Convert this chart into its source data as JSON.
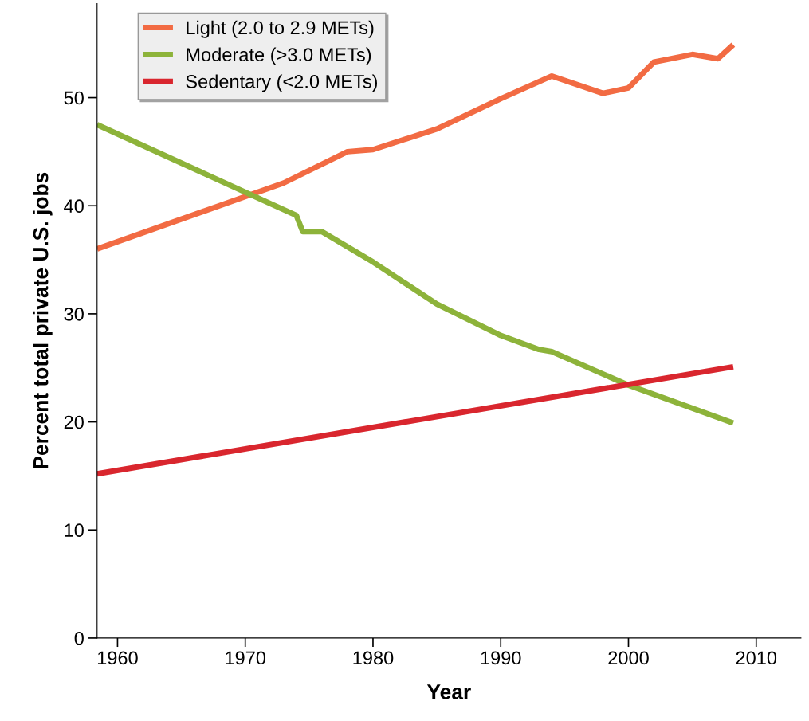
{
  "chart_data": {
    "type": "line",
    "xlabel": "Year",
    "ylabel": "Percent total private U.S. jobs",
    "xlim": [
      1958.4,
      2013.5
    ],
    "xticks": [
      1960,
      1970,
      1980,
      1990,
      2000,
      2010
    ],
    "ylim": [
      0,
      58.7
    ],
    "yticks": [
      0,
      10,
      20,
      30,
      40,
      50
    ],
    "grid": false,
    "legend": "top left",
    "marker": "none",
    "line_style": "solid",
    "series": [
      {
        "name": "Light (2.0 to 2.9 METs)",
        "color": "#f26b43",
        "x": [
          1958.4,
          1973,
          1978,
          1980,
          1985,
          1990,
          1994,
          1998,
          2000,
          2002,
          2005,
          2007,
          2008.2
        ],
        "values": [
          36.0,
          42.1,
          45.0,
          45.2,
          47.1,
          49.9,
          52.0,
          50.4,
          50.9,
          53.3,
          54.0,
          53.6,
          54.9
        ]
      },
      {
        "name": "Moderate (>3.0 METs)",
        "color": "#8db33a",
        "x": [
          1958.4,
          1974,
          1974.5,
          1976,
          1980,
          1985,
          1990,
          1993,
          1994,
          2000,
          2008.2
        ],
        "values": [
          47.5,
          39.1,
          37.6,
          37.6,
          34.8,
          30.9,
          28.0,
          26.7,
          26.5,
          23.4,
          19.9
        ]
      },
      {
        "name": "Sedentary (<2.0 METs)",
        "color": "#d9262e",
        "x": [
          1958.4,
          2008.2
        ],
        "values": [
          15.2,
          25.1
        ]
      }
    ]
  }
}
